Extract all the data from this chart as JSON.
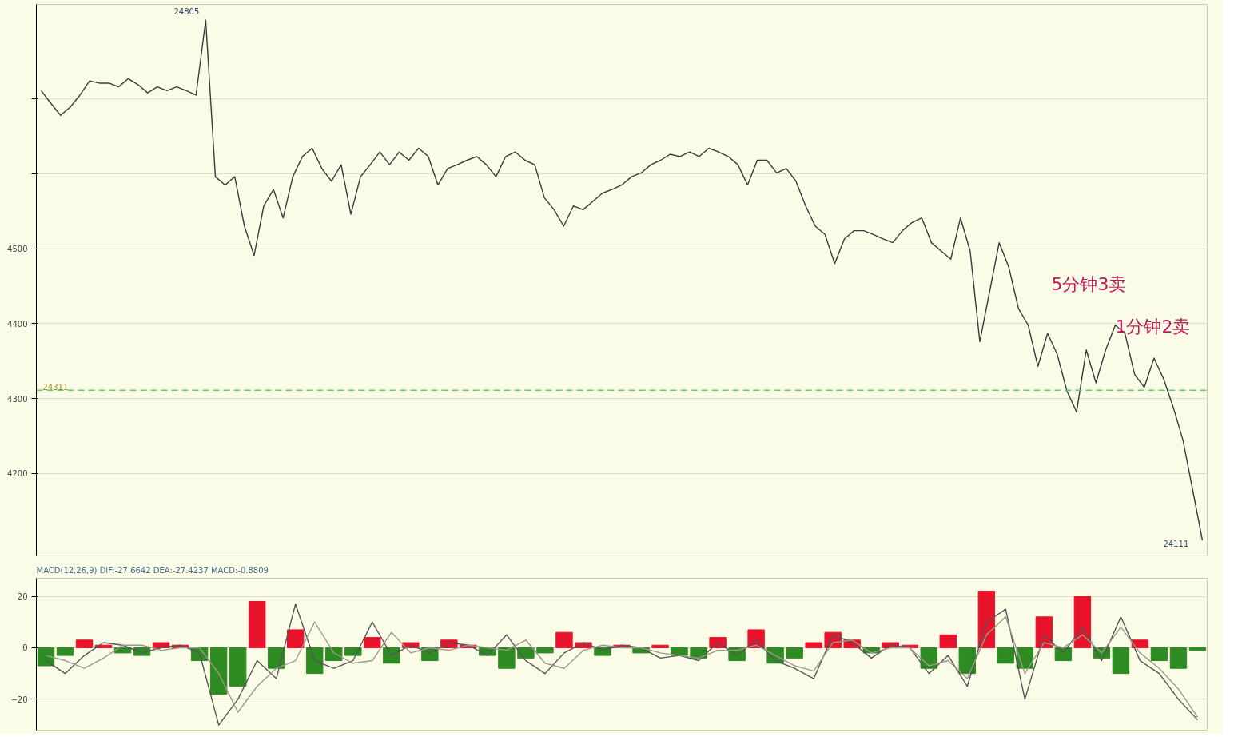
{
  "chart_data": [
    {
      "type": "line",
      "categories": [
        null,
        null,
        null,
        null,
        null,
        null,
        null,
        null,
        null,
        null,
        null,
        null,
        null,
        null,
        null,
        null,
        null,
        null,
        null,
        null,
        null,
        null,
        null,
        null,
        null,
        null,
        null,
        null,
        null,
        null,
        null,
        null,
        null,
        null,
        null,
        null,
        null,
        null,
        null,
        null,
        null,
        null,
        null,
        null,
        null,
        null,
        null,
        null,
        null,
        null,
        null,
        null,
        null,
        null,
        null,
        null,
        null,
        null,
        null,
        null,
        null,
        null,
        null,
        null,
        null,
        null,
        null,
        null,
        null,
        null,
        null,
        null,
        null,
        null,
        null,
        null,
        null,
        null,
        null,
        null,
        null,
        null,
        null,
        null,
        null,
        null,
        null,
        null,
        null,
        null,
        null,
        null,
        null,
        null,
        null,
        null,
        null,
        null,
        null,
        null,
        null,
        null,
        null,
        null,
        null,
        null,
        null,
        null,
        null,
        null,
        null,
        null,
        null,
        null,
        null,
        null,
        null,
        null,
        null,
        null,
        null
      ],
      "series": [
        {
          "color": "#3a3a3a",
          "values": [
            4711,
            4694,
            4678,
            4689,
            4705,
            4724,
            4721,
            4721,
            4716,
            4727,
            4719,
            4708,
            4716,
            4711,
            4716,
            4711,
            4705,
            4805,
            4596,
            4585,
            4596,
            4530,
            4491,
            4557,
            4579,
            4541,
            4596,
            4623,
            4634,
            4607,
            4590,
            4612,
            4546,
            4596,
            4612,
            4629,
            4612,
            4629,
            4618,
            4634,
            4623,
            4585,
            4607,
            4612,
            4618,
            4623,
            4612,
            4596,
            4623,
            4629,
            4618,
            4612,
            4568,
            4552,
            4530,
            4557,
            4552,
            4563,
            4574,
            4579,
            4585,
            4596,
            4601,
            4612,
            4618,
            4626,
            4623,
            4629,
            4623,
            4634,
            4629,
            4623,
            4612,
            4585,
            4618,
            4618,
            4601,
            4607,
            4590,
            4557,
            4530,
            4519,
            4480,
            4513,
            4524,
            4524,
            4519,
            4513,
            4508,
            4524,
            4535,
            4541,
            4508,
            4497,
            4486,
            4541,
            4497,
            4376,
            4442,
            4508,
            4475,
            4420,
            4398,
            4343,
            4387,
            4359,
            4310,
            4282,
            4365,
            4321,
            4365,
            4398,
            4387,
            4332,
            4315,
            4354,
            4326,
            4288,
            4244,
            4178,
            4111
          ]
        }
      ],
      "ylim": [
        4090,
        4826
      ],
      "yticks": [
        4200,
        4300,
        4400,
        4500,
        {
          "value": 4600,
          "label": null
        },
        {
          "value": 4700,
          "label": null
        }
      ],
      "grid": "y",
      "ref_lines": [
        {
          "axis": "y",
          "value": 4311,
          "color": "#66cc66",
          "line_style": "dashed"
        }
      ],
      "annotations": [
        "24805",
        "24111",
        "5分钟3卖",
        "1分钟2卖",
        "24311"
      ]
    },
    {
      "type": "bar",
      "title": "MACD(12,26,9) DIF:-27.6642 DEA:-27.4237 MACD:-0.8809",
      "categories": [
        null,
        null,
        null,
        null,
        null,
        null,
        null,
        null,
        null,
        null,
        null,
        null,
        null,
        null,
        null,
        null,
        null,
        null,
        null,
        null,
        null,
        null,
        null,
        null,
        null,
        null,
        null,
        null,
        null,
        null,
        null,
        null,
        null,
        null,
        null,
        null,
        null,
        null,
        null,
        null,
        null,
        null,
        null,
        null,
        null,
        null,
        null,
        null,
        null,
        null,
        null,
        null,
        null,
        null,
        null,
        null,
        null,
        null,
        null,
        null,
        null
      ],
      "series": [
        {
          "type": "bar",
          "colors": [
            "#2e8b22",
            "#2e8b22",
            "#e8132a",
            "#e8132a",
            "#2e8b22",
            "#2e8b22",
            "#e8132a",
            "#e8132a",
            "#2e8b22",
            "#2e8b22",
            "#2e8b22",
            "#e8132a",
            "#2e8b22",
            "#e8132a",
            "#2e8b22",
            "#2e8b22",
            "#2e8b22",
            "#e8132a",
            "#2e8b22",
            "#e8132a",
            "#2e8b22",
            "#e8132a",
            "#e8132a",
            "#2e8b22",
            "#2e8b22",
            "#2e8b22",
            "#2e8b22",
            "#e8132a",
            "#e8132a",
            "#2e8b22",
            "#e8132a",
            "#2e8b22",
            "#e8132a",
            "#2e8b22",
            "#2e8b22",
            "#e8132a",
            "#2e8b22",
            "#e8132a",
            "#2e8b22",
            "#2e8b22",
            "#e8132a",
            "#e8132a",
            "#e8132a",
            "#2e8b22",
            "#e8132a",
            "#e8132a",
            "#2e8b22",
            "#e8132a",
            "#2e8b22",
            "#e8132a",
            "#2e8b22",
            "#2e8b22",
            "#e8132a",
            "#2e8b22",
            "#e8132a",
            "#2e8b22",
            "#2e8b22",
            "#e8132a",
            "#2e8b22",
            "#2e8b22",
            "#2e8b22"
          ],
          "values": [
            -7,
            -3,
            3,
            1,
            -2,
            -3,
            2,
            1,
            -5,
            -18,
            -15,
            18,
            -8,
            7,
            -10,
            -5,
            -3,
            4,
            -6,
            2,
            -5,
            3,
            1,
            -3,
            -8,
            -4,
            -2,
            6,
            2,
            -3,
            1,
            -2,
            1,
            -3,
            -4,
            4,
            -5,
            7,
            -6,
            -4,
            2,
            6,
            3,
            -2,
            2,
            1,
            -8,
            5,
            -10,
            22,
            -6,
            -8,
            12,
            -5,
            20,
            -4,
            -10,
            3,
            -5,
            -8,
            -1
          ]
        },
        {
          "type": "line",
          "color": "#555555",
          "values": [
            -5,
            -10,
            -3,
            2,
            1,
            -2,
            0,
            1,
            -2,
            -30,
            -20,
            -5,
            -12,
            17,
            -5,
            -8,
            -5,
            10,
            -3,
            1,
            -2,
            2,
            1,
            -3,
            5,
            -5,
            -10,
            -2,
            2,
            -1,
            1,
            0,
            -4,
            -3,
            -5,
            2,
            -3,
            3,
            -5,
            -8,
            -12,
            5,
            2,
            -4,
            1,
            0,
            -10,
            -3,
            -15,
            10,
            15,
            -20,
            5,
            -2,
            8,
            -5,
            12,
            -5,
            -10,
            -20,
            -28
          ]
        },
        {
          "type": "line",
          "color": "#9a9a8a",
          "values": [
            -3,
            -5,
            -8,
            -4,
            1,
            1,
            -1,
            0,
            0,
            -10,
            -25,
            -15,
            -8,
            -5,
            10,
            -2,
            -6,
            -5,
            6,
            -2,
            0,
            -1,
            1,
            0,
            -1,
            3,
            -6,
            -8,
            -1,
            1,
            0,
            0,
            -2,
            -3,
            -4,
            -1,
            -1,
            1,
            -3,
            -7,
            -9,
            2,
            3,
            -2,
            0,
            0,
            -7,
            -5,
            -12,
            5,
            12,
            -10,
            2,
            0,
            5,
            -2,
            8,
            -2,
            -8,
            -16,
            -27
          ]
        }
      ],
      "ylim": [
        -32,
        27
      ],
      "yticks": [
        -20,
        0,
        20
      ],
      "grid": "y"
    }
  ]
}
